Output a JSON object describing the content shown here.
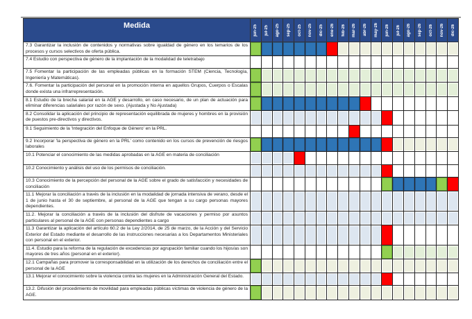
{
  "header": {
    "medida_label": "Medida",
    "months": [
      "jun-25",
      "jul-25",
      "ago-25",
      "sep-25",
      "oct-25",
      "nov-25",
      "dic-25",
      "ene-26",
      "feb-26",
      "mar-26",
      "abr-26",
      "may-26",
      "jun-26",
      "jul-26",
      "ago-26",
      "sep-26",
      "oct-26",
      "nov-26",
      "dic-26"
    ]
  },
  "colors": {
    "header": "#2a4a8c",
    "G": "#92d050",
    "B": "#2e75b6",
    "R": "#ff0000",
    "E": "#eef0e0",
    "L": "#e3efd8",
    "S": "#dde6f0",
    "W": "#ffffff"
  },
  "rows": [
    {
      "text": "7.3 Garantizar la inclusión de contenidos y normativas sobre igualdad de género en los temarios de los procesos y cursos selectivos de oferta pública.",
      "cells": "GBBBBBBREEEEEEEEEEE"
    },
    {
      "text": "7.4 Estudio con perspectiva de género de la implantación de la modalidad de teletrabajo",
      "cells": "WWWWWWWWWWWWWWWWWWW"
    },
    {
      "text": "7.5 Fomentar la participación de las empleadas públicas en la formación STEM (Ciencia, Tecnología, Ingeniería y Matemáticas).",
      "cells": "GLLLLLLLLLLLLLLLLLL"
    },
    {
      "text": "7.6. Fomentar la participación del personal en la promoción interna en aquellos Grupos, Cuerpos o Escalas donde exista una infrarrepresentación.",
      "cells": "GLLLLLLLLLLLLLLLLLL"
    },
    {
      "text": "8.1 Estudio de la brecha salarial en la AGE y desarrollo, en caso necesario, de un plan de actuación para eliminar diferencias salariales por razón de sexo. (Ajustada y No Ajustada)",
      "cells": "GBBBBBBBBBRWWWWWWWW"
    },
    {
      "text": "8.2 Consolidar la aplicación del principio de representación equilibrada de mujeres y hombres en la provisión de puestos pre-directivos y directivos.",
      "cells": "SSSSSSSSSSSSRWWWWWW"
    },
    {
      "text": "9.1 Seguimiento de la 'Integración del Enfoque de Género' en la PRL.",
      "cells": "WWWWWWWWWRWWWWWWWWW"
    },
    {
      "text": "9.2 Incorporar 'la perspectiva de género en la PRL' como contenido en los cursos de prevención de riesgos laborales",
      "cells": "GBBBBBBBBBBBREEEEEE"
    },
    {
      "text": "10.1 Potenciar el conocimiento de las medidas aprobadas en la AGE en materia de conciliación",
      "cells": "SSSSRWWWWWWWWWWWWWW"
    },
    {
      "text": "10.2 Conocimiento y análisis del uso de los permisos de conciliación.",
      "cells": "SSSSSSSSSSSSRWWWWWW"
    },
    {
      "text": "10.3 Conocimiento de la percepción del personal de la AGE sobre el grado de satisfacción y necesidades de conciliación",
      "cells": "WWWWWWWWWWWWGBBBBGR"
    },
    {
      "text": "11.1 Mejorar la conciliación a través de la inclusión en la modalidad de jornada intensiva de verano, desde el 1 de junio hasta el 30 de septiembre, al personal de la AGE que tengan a su cargo personas mayores dependientes.",
      "cells": "SSSSSSSSSSSSSSSSSSS"
    },
    {
      "text": "11.2. Mejorar la conciliación a través de la inclusión del disfrute de vacaciones y permiso por asuntos particulares al personal de la AGE con personas dependientes a cargo",
      "cells": "SSSSSSSSSSSSSSSSSSS"
    },
    {
      "text": "11.3 Garantizar la aplicación del artículo 60.2 de la Ley 2/2014, de 25 de marzo, de la Acción y del Servicio Exterior del Estado mediante el desarrollo de las instrucciones necesarias a los Departamentos Ministeriales con personal en el exterior.",
      "cells": "SSSSSSSSSSSSRWWWWWW"
    },
    {
      "text": "11.4. Estudio para la reforma de la regulación de excedencias por agrupación familiar cuando los hijos/as son mayores de tres años (personal en el exterior).",
      "cells": "WWWWWWWWWWWWGLLLLLL"
    },
    {
      "text": "12.1 Campañas para promover la corresponsabilidad en la utilización de los derechos de conciliación entre el personal de la AGE",
      "cells": "GEEEEEEEEEEEEEEEEEE"
    },
    {
      "text": "13.1 Mejorar el conocimiento sobre la violencia contra las mujeres en la Administración General del Estado.",
      "cells": "SSSSSSSSSSSSRWWWWWW"
    },
    {
      "text": "13.2. Difusión del procedimiento de movilidad para empleadas públicas víctimas de violencia de género de la AGE.",
      "cells": "GEEEEEEEEEEEEEEEEEE"
    }
  ]
}
